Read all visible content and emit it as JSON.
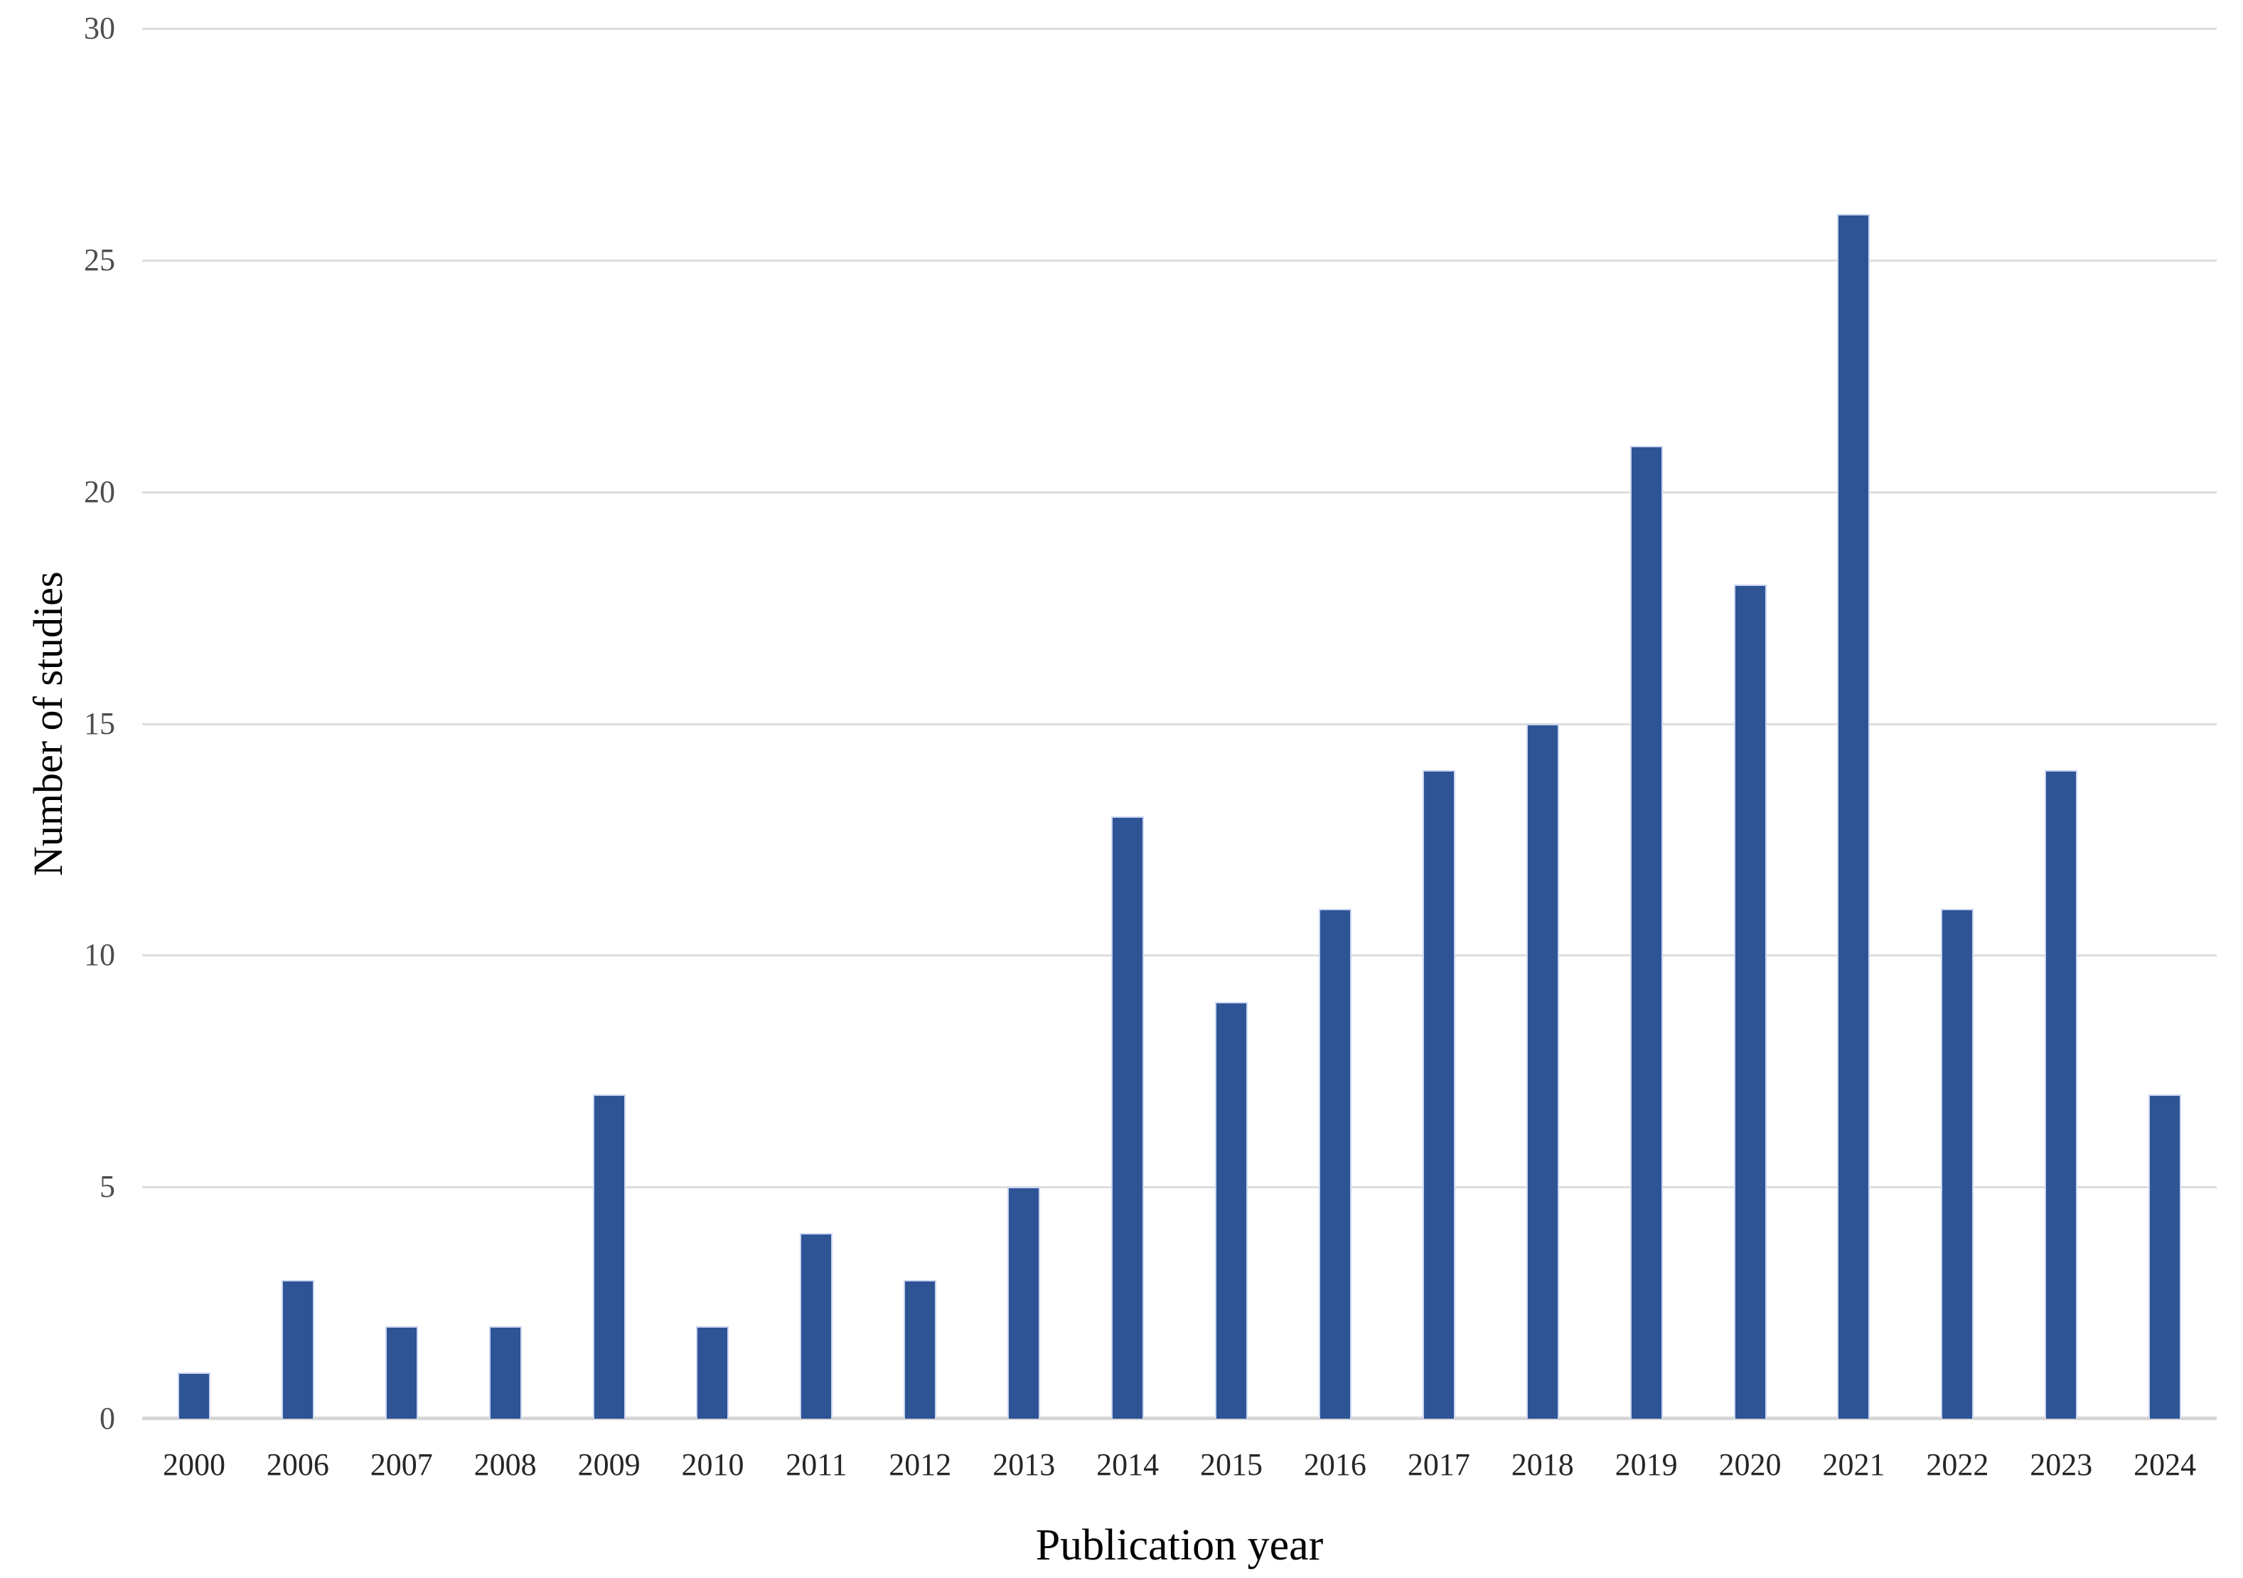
{
  "chart_data": {
    "type": "bar",
    "title": "",
    "xlabel": "Publication year",
    "ylabel": "Number of studies",
    "categories": [
      "2000",
      "2006",
      "2007",
      "2008",
      "2009",
      "2010",
      "2011",
      "2012",
      "2013",
      "2014",
      "2015",
      "2016",
      "2017",
      "2018",
      "2019",
      "2020",
      "2021",
      "2022",
      "2023",
      "2024"
    ],
    "values": [
      1,
      3,
      2,
      2,
      7,
      2,
      4,
      3,
      5,
      13,
      9,
      11,
      14,
      15,
      21,
      18,
      26,
      11,
      14,
      7
    ],
    "ylim": [
      0,
      30
    ],
    "yticks": [
      0,
      5,
      10,
      15,
      20,
      25,
      30
    ],
    "grid": "horizontal-only",
    "legend_position": "none",
    "bar_color": "#2E5496",
    "bar_border_color": "#C9D5F0",
    "gridline_color": "#DDDDDD",
    "axis_line_color": "#D6D6D6",
    "x_tick_color": "#262626",
    "y_tick_color": "#4D4D4D",
    "axis_title_color": "#000000"
  }
}
